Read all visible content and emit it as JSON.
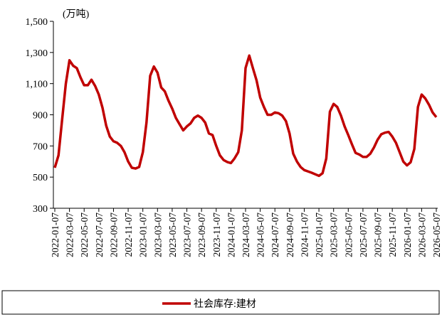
{
  "chart_data": {
    "type": "line",
    "unit_label": "(万吨)",
    "categories": [
      "2022-01-07",
      null,
      null,
      null,
      "2022-03-07",
      null,
      null,
      null,
      "2022-05-07",
      null,
      null,
      null,
      "2022-07-07",
      null,
      null,
      null,
      "2022-09-07",
      null,
      null,
      null,
      "2022-11-07",
      null,
      null,
      null,
      "2023-01-07",
      null,
      null,
      null,
      "2023-03-07",
      null,
      null,
      null,
      "2023-05-07",
      null,
      null,
      null,
      "2023-07-07",
      null,
      null,
      null,
      "2023-09-07",
      null,
      null,
      null,
      "2023-11-07",
      null,
      null,
      null,
      "2024-01-07",
      null,
      null,
      null,
      "2024-03-07",
      null,
      null,
      null,
      "2024-05-07",
      null,
      null,
      null,
      "2024-07-07",
      null,
      null,
      null,
      "2024-09-07",
      null,
      null,
      null,
      "2024-11-07",
      null,
      null,
      null,
      "2025-01-07",
      null,
      null,
      null,
      "2025-03-07",
      null,
      null,
      null,
      "2025-05-07",
      null,
      null,
      null,
      "2025-07-07",
      null,
      null,
      null,
      "2025-09-07",
      null,
      null,
      null,
      "2025-11-07",
      null,
      null,
      null,
      "2026-01-07",
      null,
      null,
      null,
      "2026-03-07",
      null,
      null,
      null,
      "2026-05-07"
    ],
    "series": [
      {
        "name": "社会库存:建材",
        "color": "#c00000",
        "values": [
          560,
          640,
          870,
          1100,
          1250,
          1215,
          1200,
          1140,
          1090,
          1090,
          1125,
          1085,
          1030,
          945,
          830,
          760,
          730,
          720,
          700,
          660,
          600,
          560,
          555,
          565,
          660,
          850,
          1150,
          1210,
          1170,
          1075,
          1050,
          990,
          940,
          880,
          840,
          800,
          825,
          845,
          880,
          895,
          880,
          850,
          780,
          770,
          700,
          640,
          610,
          597,
          590,
          620,
          660,
          800,
          1200,
          1280,
          1200,
          1120,
          1010,
          950,
          900,
          900,
          915,
          910,
          895,
          860,
          780,
          650,
          600,
          565,
          545,
          537,
          528,
          518,
          508,
          525,
          620,
          920,
          970,
          950,
          895,
          825,
          770,
          710,
          655,
          645,
          630,
          630,
          650,
          690,
          740,
          775,
          785,
          790,
          760,
          720,
          660,
          600,
          575,
          595,
          680,
          950,
          1030,
          1005,
          965,
          915,
          885
        ]
      }
    ],
    "ylim": [
      300,
      1500
    ],
    "yticks": [
      300,
      500,
      700,
      900,
      {
        "value": 1100,
        "label": "1,100"
      },
      {
        "value": 1300,
        "label": "1,300"
      },
      {
        "value": 1500,
        "label": "1,500"
      }
    ],
    "grid": false,
    "legend": "bottom"
  }
}
